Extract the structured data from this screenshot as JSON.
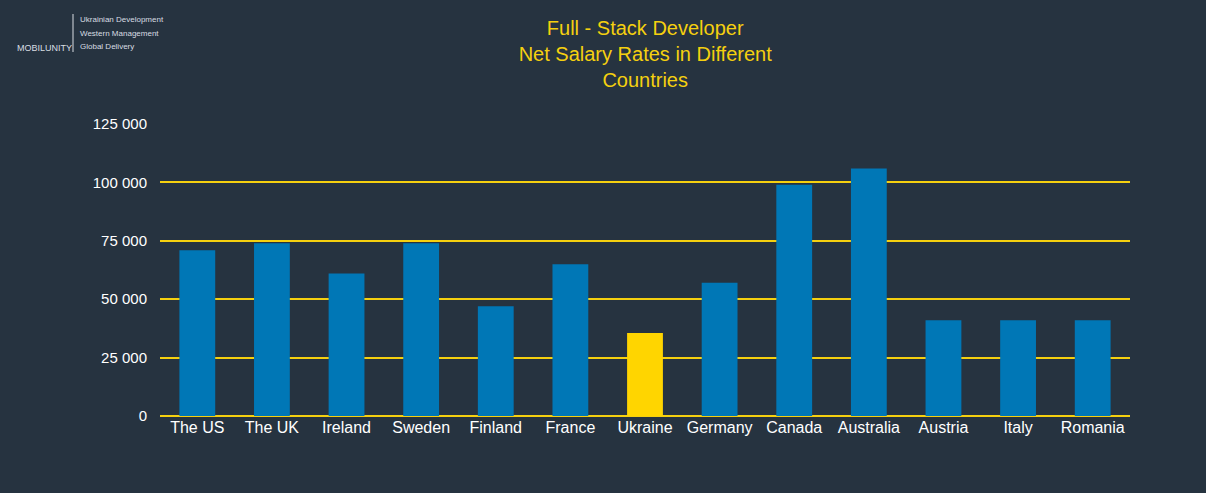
{
  "chart_data": {
    "type": "bar",
    "title": "Full - Stack Developer\nNet Salary Rates in Different\nCountries",
    "annotations": [
      "MOBILUNITY",
      "Ukrainian Development",
      "Western Management",
      "Global Delivery"
    ],
    "categories": [
      "The US",
      "The UK",
      "Ireland",
      "Sweden",
      "Finland",
      "France",
      "Ukraine",
      "Germany",
      "Canada",
      "Australia",
      "Austria",
      "Italy",
      "Romania"
    ],
    "values": [
      71000,
      74000,
      61000,
      74000,
      47000,
      65000,
      35500,
      57000,
      99000,
      106000,
      41000,
      41000,
      41000
    ],
    "colors": [
      "#0077b6",
      "#0077b6",
      "#0077b6",
      "#0077b6",
      "#0077b6",
      "#0077b6",
      "#ffd500",
      "#0077b6",
      "#0077b6",
      "#0077b6",
      "#0077b6",
      "#0077b6",
      "#0077b6"
    ],
    "ylim": [
      0,
      125000
    ],
    "yticks": [
      0,
      {
        "value": 25000,
        "label": "25 000"
      },
      {
        "value": 50000,
        "label": "50 000"
      },
      {
        "value": 75000,
        "label": "75 000"
      },
      {
        "value": 100000,
        "label": "100 000"
      },
      {
        "value": 125000,
        "label": "125 000"
      }
    ],
    "grid": true
  }
}
